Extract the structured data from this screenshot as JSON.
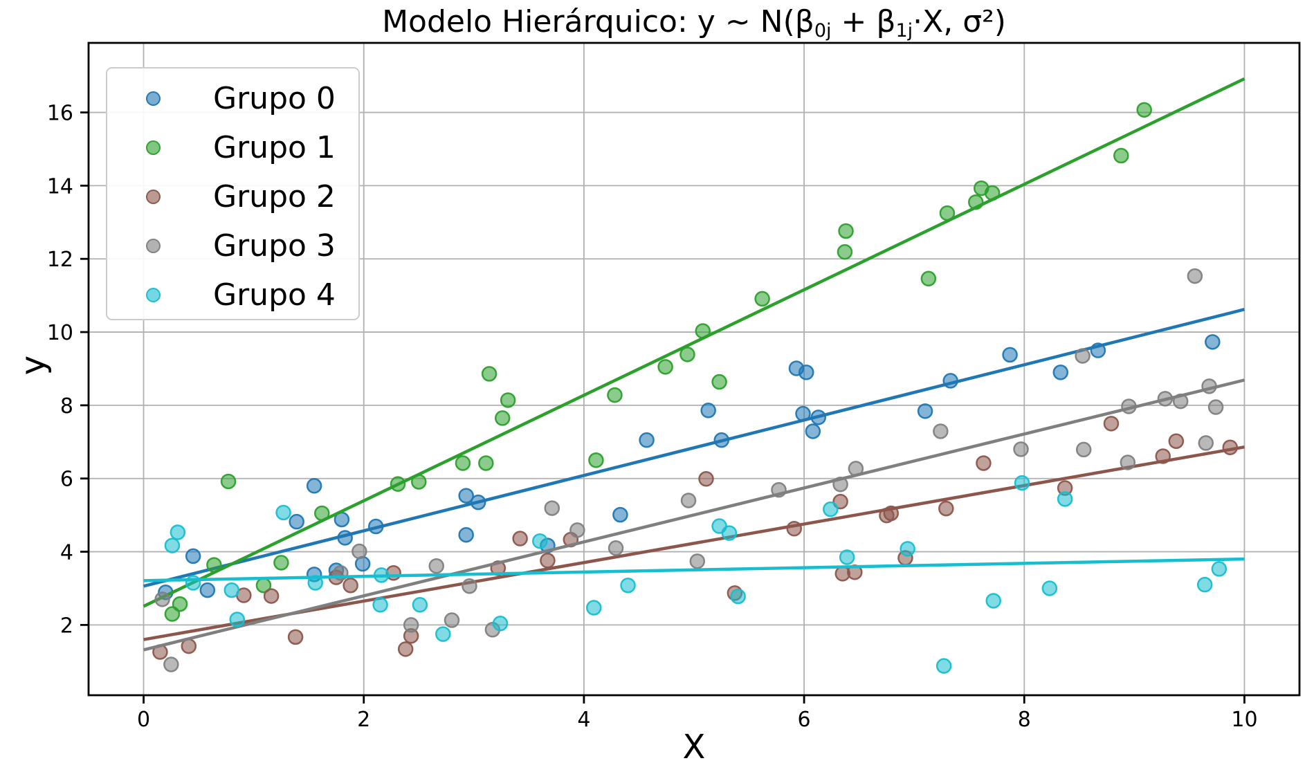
{
  "figure": {
    "title_segments": [
      {
        "text": "Modelo Hierárquico: y ~ N(β",
        "sub": false
      },
      {
        "text": "0j",
        "sub": true
      },
      {
        "text": " + β",
        "sub": false
      },
      {
        "text": "1j",
        "sub": true
      },
      {
        "text": "·X, σ²)",
        "sub": false
      }
    ]
  },
  "chart_data": {
    "type": "scatter",
    "title": "Modelo Hierárquico: y ~ N(β0j + β1j·X, σ²)",
    "xlabel": "X",
    "ylabel": "y",
    "xlim": [
      -0.5,
      10.5
    ],
    "ylim": [
      0.08,
      17.9
    ],
    "xticks": [
      "0",
      "2",
      "4",
      "6",
      "8",
      "10"
    ],
    "xtick_values": [
      0,
      2,
      4,
      6,
      8,
      10
    ],
    "yticks": [
      "2",
      "4",
      "6",
      "8",
      "10",
      "12",
      "14",
      "16"
    ],
    "ytick_values": [
      2,
      4,
      6,
      8,
      10,
      12,
      14,
      16
    ],
    "grid": true,
    "legend_position": "upper left",
    "series": [
      {
        "name": "Grupo 0",
        "color": "#1f77b4",
        "regression_line": {
          "x": [
            0,
            10
          ],
          "y": [
            3.06,
            10.62
          ]
        },
        "points": [
          [
            0.2,
            2.89
          ],
          [
            0.45,
            3.88
          ],
          [
            0.58,
            2.95
          ],
          [
            1.39,
            4.82
          ],
          [
            1.55,
            5.8
          ],
          [
            1.55,
            3.38
          ],
          [
            1.75,
            3.49
          ],
          [
            1.8,
            4.88
          ],
          [
            1.83,
            4.38
          ],
          [
            1.99,
            3.67
          ],
          [
            2.11,
            4.69
          ],
          [
            2.93,
            5.53
          ],
          [
            2.93,
            4.46
          ],
          [
            3.04,
            5.35
          ],
          [
            3.67,
            4.17
          ],
          [
            4.33,
            5.01
          ],
          [
            4.57,
            7.05
          ],
          [
            5.13,
            7.86
          ],
          [
            5.25,
            7.05
          ],
          [
            5.93,
            9.01
          ],
          [
            5.99,
            7.77
          ],
          [
            6.02,
            8.9
          ],
          [
            6.08,
            7.29
          ],
          [
            6.13,
            7.67
          ],
          [
            7.1,
            7.84
          ],
          [
            7.33,
            8.67
          ],
          [
            7.87,
            9.38
          ],
          [
            8.33,
            8.9
          ],
          [
            8.67,
            9.5
          ],
          [
            9.71,
            9.73
          ]
        ]
      },
      {
        "name": "Grupo 1",
        "color": "#2ca02c",
        "regression_line": {
          "x": [
            0,
            10
          ],
          "y": [
            2.51,
            16.92
          ]
        },
        "points": [
          [
            0.26,
            2.3
          ],
          [
            0.33,
            2.57
          ],
          [
            0.64,
            3.64
          ],
          [
            0.77,
            5.92
          ],
          [
            1.09,
            3.08
          ],
          [
            1.25,
            3.7
          ],
          [
            1.62,
            5.05
          ],
          [
            2.31,
            5.85
          ],
          [
            2.5,
            5.91
          ],
          [
            2.9,
            6.42
          ],
          [
            3.11,
            6.42
          ],
          [
            3.14,
            8.86
          ],
          [
            3.26,
            7.65
          ],
          [
            3.31,
            8.14
          ],
          [
            4.11,
            6.5
          ],
          [
            4.28,
            8.28
          ],
          [
            4.74,
            9.05
          ],
          [
            4.94,
            9.39
          ],
          [
            5.08,
            10.03
          ],
          [
            5.23,
            8.64
          ],
          [
            5.62,
            10.91
          ],
          [
            6.37,
            12.19
          ],
          [
            6.38,
            12.76
          ],
          [
            7.13,
            11.46
          ],
          [
            7.3,
            13.25
          ],
          [
            7.56,
            13.55
          ],
          [
            7.61,
            13.93
          ],
          [
            7.71,
            13.8
          ],
          [
            8.88,
            14.82
          ],
          [
            9.09,
            16.07
          ]
        ]
      },
      {
        "name": "Grupo 2",
        "color": "#8c564b",
        "regression_line": {
          "x": [
            0,
            10
          ],
          "y": [
            1.6,
            6.86
          ]
        },
        "points": [
          [
            0.15,
            1.26
          ],
          [
            0.41,
            1.42
          ],
          [
            0.91,
            2.81
          ],
          [
            1.16,
            2.79
          ],
          [
            1.38,
            1.67
          ],
          [
            1.75,
            3.3
          ],
          [
            1.88,
            3.08
          ],
          [
            2.27,
            3.42
          ],
          [
            2.38,
            1.34
          ],
          [
            2.43,
            1.7
          ],
          [
            3.22,
            3.55
          ],
          [
            3.42,
            4.36
          ],
          [
            3.67,
            3.76
          ],
          [
            3.88,
            4.33
          ],
          [
            5.11,
            5.99
          ],
          [
            5.37,
            2.87
          ],
          [
            5.91,
            4.63
          ],
          [
            6.33,
            5.37
          ],
          [
            6.35,
            3.4
          ],
          [
            6.46,
            3.44
          ],
          [
            6.75,
            4.99
          ],
          [
            6.79,
            5.05
          ],
          [
            6.92,
            3.83
          ],
          [
            7.29,
            5.18
          ],
          [
            7.63,
            6.42
          ],
          [
            8.37,
            5.74
          ],
          [
            8.79,
            7.5
          ],
          [
            9.26,
            6.61
          ],
          [
            9.38,
            7.02
          ],
          [
            9.87,
            6.85
          ]
        ]
      },
      {
        "name": "Grupo 3",
        "color": "#7f7f7f",
        "regression_line": {
          "x": [
            0,
            10
          ],
          "y": [
            1.32,
            8.69
          ]
        },
        "points": [
          [
            0.17,
            2.7
          ],
          [
            0.25,
            0.92
          ],
          [
            1.79,
            3.42
          ],
          [
            1.96,
            4.01
          ],
          [
            2.43,
            2.0
          ],
          [
            2.66,
            3.61
          ],
          [
            2.8,
            2.13
          ],
          [
            2.96,
            3.06
          ],
          [
            3.17,
            1.87
          ],
          [
            3.71,
            5.19
          ],
          [
            3.94,
            4.59
          ],
          [
            4.29,
            4.1
          ],
          [
            4.95,
            5.4
          ],
          [
            5.03,
            3.74
          ],
          [
            5.77,
            5.69
          ],
          [
            6.33,
            5.84
          ],
          [
            6.47,
            6.27
          ],
          [
            7.24,
            7.29
          ],
          [
            7.97,
            6.8
          ],
          [
            8.53,
            9.35
          ],
          [
            8.54,
            6.79
          ],
          [
            8.94,
            6.44
          ],
          [
            8.95,
            7.97
          ],
          [
            9.28,
            8.18
          ],
          [
            9.42,
            8.11
          ],
          [
            9.55,
            11.53
          ],
          [
            9.65,
            6.97
          ],
          [
            9.68,
            8.52
          ],
          [
            9.74,
            7.95
          ]
        ]
      },
      {
        "name": "Grupo 4",
        "color": "#17becf",
        "regression_line": {
          "x": [
            0,
            10
          ],
          "y": [
            3.21,
            3.8
          ]
        },
        "points": [
          [
            0.26,
            4.17
          ],
          [
            0.31,
            4.53
          ],
          [
            0.45,
            3.15
          ],
          [
            0.8,
            2.95
          ],
          [
            0.85,
            2.15
          ],
          [
            1.27,
            5.07
          ],
          [
            1.56,
            3.15
          ],
          [
            2.15,
            2.55
          ],
          [
            2.16,
            3.36
          ],
          [
            2.51,
            2.55
          ],
          [
            2.72,
            1.75
          ],
          [
            3.24,
            2.04
          ],
          [
            3.6,
            4.29
          ],
          [
            4.09,
            2.47
          ],
          [
            4.4,
            3.08
          ],
          [
            5.23,
            4.7
          ],
          [
            5.32,
            4.51
          ],
          [
            5.4,
            2.78
          ],
          [
            6.24,
            5.16
          ],
          [
            6.39,
            3.85
          ],
          [
            6.94,
            4.08
          ],
          [
            7.27,
            0.88
          ],
          [
            7.72,
            2.66
          ],
          [
            7.98,
            5.88
          ],
          [
            8.23,
            3.0
          ],
          [
            8.37,
            5.44
          ],
          [
            9.64,
            3.1
          ],
          [
            9.77,
            3.53
          ]
        ]
      }
    ],
    "style": {
      "grid_color": "#b0b0b0",
      "spine_color": "#000000",
      "background": "#ffffff",
      "marker_fill_alpha": 0.55,
      "marker_edge_alpha": 0.95
    }
  }
}
